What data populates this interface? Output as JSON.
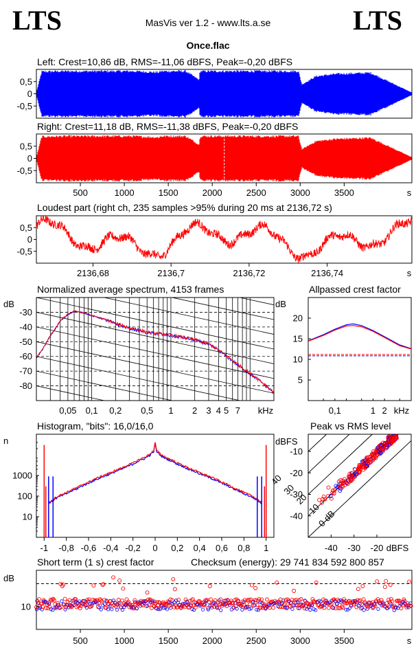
{
  "header": {
    "logo_left": "LTS",
    "logo_right": "LTS",
    "app_title": "MasVis ver 1.2 - www.lts.a.se",
    "file_name": "Once.flac"
  },
  "colors": {
    "left": "#0000ff",
    "right": "#ff0000"
  },
  "chart_data": [
    {
      "id": "left-waveform",
      "type": "area",
      "title": "Left: Crest=10,86 dB, RMS=-11,06 dBFS, Peak=-0,20 dBFS",
      "yticks": [
        "0,5",
        "0",
        "-0,5"
      ],
      "ylim": [
        -1,
        1
      ],
      "xlim": [
        0,
        4270
      ],
      "envelope": {
        "x": [
          0,
          60,
          300,
          1100,
          1390,
          1420,
          1700,
          1850,
          1860,
          2150,
          2500,
          2980,
          3020,
          3180,
          3400,
          3800,
          4270
        ],
        "peak": [
          0.05,
          0.95,
          0.97,
          0.97,
          0.92,
          0.97,
          0.97,
          0.6,
          0.97,
          0.97,
          0.97,
          0.97,
          0.4,
          0.75,
          0.85,
          0.9,
          0.05
        ]
      }
    },
    {
      "id": "right-waveform",
      "type": "area",
      "title": "Right: Crest=11,18 dB, RMS=-11,38 dBFS, Peak=-0,20 dBFS",
      "yticks": [
        "0,5",
        "0",
        "-0,5"
      ],
      "xticks": [
        "500",
        "1000",
        "1500",
        "2000",
        "2500",
        "3000",
        "3500"
      ],
      "xtick_values": [
        500,
        1000,
        1500,
        2000,
        2500,
        3000,
        3500
      ],
      "xunit": "s",
      "ylim": [
        -1,
        1
      ],
      "xlim": [
        0,
        4270
      ]
    },
    {
      "id": "loudest-part",
      "type": "line",
      "title": "Loudest part (right ch, 235 samples >95% during 20 ms at 2136,72 s)",
      "yticks": [
        "0,5",
        "0",
        "-0,5"
      ],
      "xticks": [
        "2136,68",
        "2136,7",
        "2136,72",
        "2136,74"
      ],
      "xtick_values": [
        2136.68,
        2136.7,
        2136.72,
        2136.74
      ],
      "xunit": "s",
      "xlim": [
        2136.6655,
        2136.7617
      ],
      "ylim": [
        -1,
        1
      ]
    },
    {
      "id": "average-spectrum",
      "type": "line",
      "title": "Normalized average spectrum, 4153 frames",
      "ylabel": "dB",
      "yticks": [
        "-30",
        "-40",
        "-50",
        "-60",
        "-70",
        "-80"
      ],
      "ytick_values": [
        -30,
        -40,
        -50,
        -60,
        -70,
        -80
      ],
      "xticks": [
        "0,05",
        "0,1",
        "0,2",
        "0,5",
        "1",
        "2",
        "3",
        "4",
        "5",
        "7"
      ],
      "xtick_values": [
        0.05,
        0.1,
        0.2,
        0.5,
        1,
        2,
        3,
        4,
        5,
        7
      ],
      "xunit": "kHz",
      "xscale": "log",
      "xlim": [
        0.02,
        20
      ],
      "ylim": [
        -90,
        -20
      ],
      "series": {
        "x": [
          0.02,
          0.03,
          0.04,
          0.05,
          0.06,
          0.08,
          0.1,
          0.2,
          0.3,
          0.5,
          1,
          2,
          3,
          4,
          5,
          7,
          10,
          15,
          20
        ],
        "y": [
          -61,
          -46,
          -36,
          -31.5,
          -29.5,
          -30.5,
          -32.5,
          -38,
          -41,
          -44,
          -46,
          -49,
          -52,
          -56,
          -60,
          -66,
          -72,
          -79,
          -85
        ]
      }
    },
    {
      "id": "allpassed-crest",
      "type": "line",
      "title": "Allpassed crest factor",
      "ylabel": "dB",
      "yticks": [
        "20",
        "15",
        "10",
        "5"
      ],
      "ytick_values": [
        20,
        15,
        10,
        5
      ],
      "xticks": [
        "0,1",
        "1",
        "2"
      ],
      "xtick_values": [
        0.1,
        1,
        2
      ],
      "xunit": "kHz",
      "xscale": "log",
      "xlim": [
        0.02,
        10
      ],
      "ylim": [
        0,
        25
      ],
      "curve": {
        "x": [
          0.02,
          0.05,
          0.1,
          0.2,
          0.3,
          0.5,
          1,
          2,
          5,
          10
        ],
        "left": [
          14.5,
          16,
          17.3,
          18.4,
          18.6,
          18.2,
          17,
          15.5,
          13.5,
          12.6
        ],
        "right": [
          14.4,
          15.8,
          17.1,
          18.1,
          18.2,
          17.9,
          16.8,
          15.3,
          13.3,
          12.5
        ]
      },
      "reference": {
        "left": 10.86,
        "right": 11.18
      }
    },
    {
      "id": "histogram",
      "type": "line",
      "title": "Histogram, \"bits\": 16,0/16,0",
      "ylabel": "n",
      "yticks": [
        "1000",
        "100",
        "10"
      ],
      "ytick_values": [
        1000,
        100,
        10
      ],
      "yscale": "log",
      "ylim": [
        1,
        100000
      ],
      "xticks": [
        "-1",
        "-0,8",
        "-0,6",
        "-0,4",
        "-0,2",
        "0",
        "0,2",
        "0,4",
        "0,6",
        "0,8",
        "1"
      ],
      "xtick_values": [
        -1,
        -0.8,
        -0.6,
        -0.4,
        -0.2,
        0,
        0.2,
        0.4,
        0.6,
        0.8,
        1
      ],
      "xlim": [
        -1.07,
        1.07
      ],
      "shape": {
        "x": [
          0,
          0.01,
          0.05,
          0.1,
          0.2,
          0.3,
          0.4,
          0.5,
          0.6,
          0.7,
          0.8,
          0.9,
          0.95
        ],
        "n": [
          40000,
          16000,
          10000,
          7000,
          3800,
          2200,
          1300,
          800,
          450,
          250,
          140,
          80,
          50
        ]
      }
    },
    {
      "id": "peak-vs-rms",
      "type": "scatter",
      "title": "Peak vs RMS level",
      "ylabel": "dBFS",
      "xunit": "dBFS",
      "yticks": [
        "-10",
        "-20",
        "-30",
        "-40"
      ],
      "ytick_values": [
        -10,
        -20,
        -30,
        -40
      ],
      "xticks": [
        "-40",
        "-30",
        "-20"
      ],
      "xtick_values": [
        -40,
        -30,
        -20
      ],
      "xlim": [
        -50,
        -5
      ],
      "ylim": [
        -50,
        -2
      ],
      "diagonals": [
        "0 dB",
        "10",
        "20",
        "30",
        "40"
      ],
      "diagonal_values": [
        0,
        10,
        20,
        30,
        40
      ],
      "cluster": {
        "rms_range": [
          -46,
          -11
        ],
        "crest_mean": 9.5,
        "crest_spread": 2.2
      }
    },
    {
      "id": "short-term-crest",
      "type": "scatter",
      "title": "Short term (1 s) crest factor",
      "ylabel": "dB",
      "yticks": [
        "10"
      ],
      "ytick_values": [
        10
      ],
      "yscale": "log",
      "ylim": [
        5,
        30
      ],
      "reference_line": 20,
      "xticks": [
        "500",
        "1000",
        "1500",
        "2000",
        "2500",
        "3000",
        "3500"
      ],
      "xtick_values": [
        500,
        1000,
        1500,
        2000,
        2500,
        3000,
        3500
      ],
      "xunit": "s",
      "xlim": [
        0,
        4270
      ],
      "baseline_crest": 10.5
    }
  ],
  "checksum": {
    "label": "Checksum (energy):",
    "value": "29 741 834 592 800 857"
  }
}
